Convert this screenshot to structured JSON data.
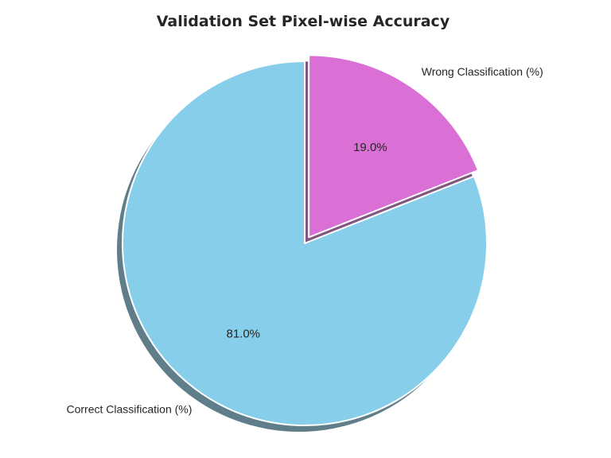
{
  "chart_data": {
    "type": "pie",
    "title": "Validation Set Pixel-wise Accuracy",
    "categories": [
      "Correct Classification (%)",
      "Wrong Classification (%)"
    ],
    "values": [
      81.0,
      19.0
    ],
    "percent_labels": [
      "81.0%",
      "19.0%"
    ],
    "colors": [
      "#87ceeb",
      "#da70d6"
    ],
    "exploded": [
      false,
      true
    ],
    "shadow": true,
    "start_angle_deg": 90,
    "direction": "counterclockwise"
  }
}
